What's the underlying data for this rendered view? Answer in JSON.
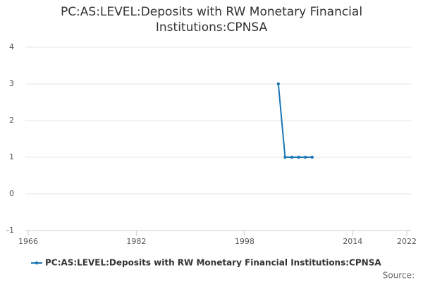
{
  "chart_data": {
    "type": "line",
    "title": "PC:AS:LEVEL:Deposits with RW Monetary Financial Institutions:CPNSA",
    "x": [
      2003,
      2004,
      2005,
      2006,
      2007,
      2008
    ],
    "series": [
      {
        "name": "PC:AS:LEVEL:Deposits with RW Monetary Financial Institutions:CPNSA",
        "color": "#1a75b4",
        "values": [
          3,
          1,
          1,
          1,
          1,
          1
        ]
      }
    ],
    "xlim": [
      1966,
      2022
    ],
    "xticks": [
      1966,
      1982,
      1998,
      2014,
      2022
    ],
    "ylim": [
      -1,
      4
    ],
    "yticks": [
      -1,
      0,
      1,
      2,
      3,
      4
    ],
    "grid": true,
    "source": "Source:"
  }
}
